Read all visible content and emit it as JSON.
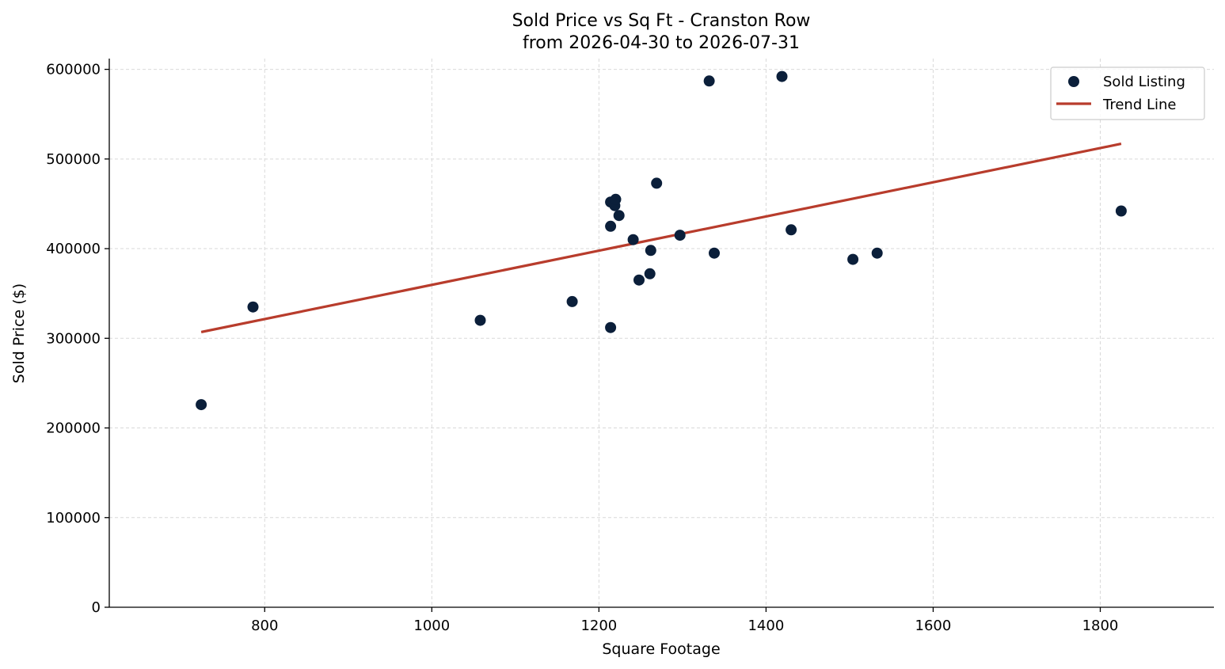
{
  "chart_data": {
    "type": "scatter",
    "title_line1": "Sold Price vs Sq Ft - Cranston Row",
    "title_line2": "from 2026-04-30 to 2026-07-31",
    "xlabel": "Square Footage",
    "ylabel": "Sold Price ($)",
    "xlim": [
      614,
      1936
    ],
    "ylim": [
      0,
      612000
    ],
    "x_ticks": [
      800,
      1000,
      1200,
      1400,
      1600,
      1800
    ],
    "y_ticks": [
      0,
      100000,
      200000,
      300000,
      400000,
      500000,
      600000
    ],
    "grid": true,
    "legend": {
      "placement": "top-right",
      "entries": [
        "Sold Listing",
        "Trend Line"
      ]
    },
    "colors": {
      "points": "#0b1f3a",
      "trend": "#b83c2c",
      "grid": "#d9d9d9",
      "axis": "#000000"
    },
    "series": [
      {
        "name": "Sold Listing",
        "kind": "scatter",
        "points": [
          {
            "x": 724,
            "y": 226000
          },
          {
            "x": 786,
            "y": 335000
          },
          {
            "x": 1058,
            "y": 320000
          },
          {
            "x": 1168,
            "y": 341000
          },
          {
            "x": 1214,
            "y": 312000
          },
          {
            "x": 1214,
            "y": 452000
          },
          {
            "x": 1214,
            "y": 425000
          },
          {
            "x": 1219,
            "y": 448000
          },
          {
            "x": 1220,
            "y": 455000
          },
          {
            "x": 1224,
            "y": 437000
          },
          {
            "x": 1241,
            "y": 410000
          },
          {
            "x": 1248,
            "y": 365000
          },
          {
            "x": 1261,
            "y": 372000
          },
          {
            "x": 1262,
            "y": 398000
          },
          {
            "x": 1269,
            "y": 473000
          },
          {
            "x": 1297,
            "y": 415000
          },
          {
            "x": 1332,
            "y": 587000
          },
          {
            "x": 1338,
            "y": 395000
          },
          {
            "x": 1419,
            "y": 592000
          },
          {
            "x": 1430,
            "y": 421000
          },
          {
            "x": 1504,
            "y": 388000
          },
          {
            "x": 1533,
            "y": 395000
          },
          {
            "x": 1825,
            "y": 442000
          }
        ]
      },
      {
        "name": "Trend Line",
        "kind": "line",
        "points": [
          {
            "x": 724,
            "y": 307000
          },
          {
            "x": 1825,
            "y": 517000
          }
        ]
      }
    ]
  }
}
